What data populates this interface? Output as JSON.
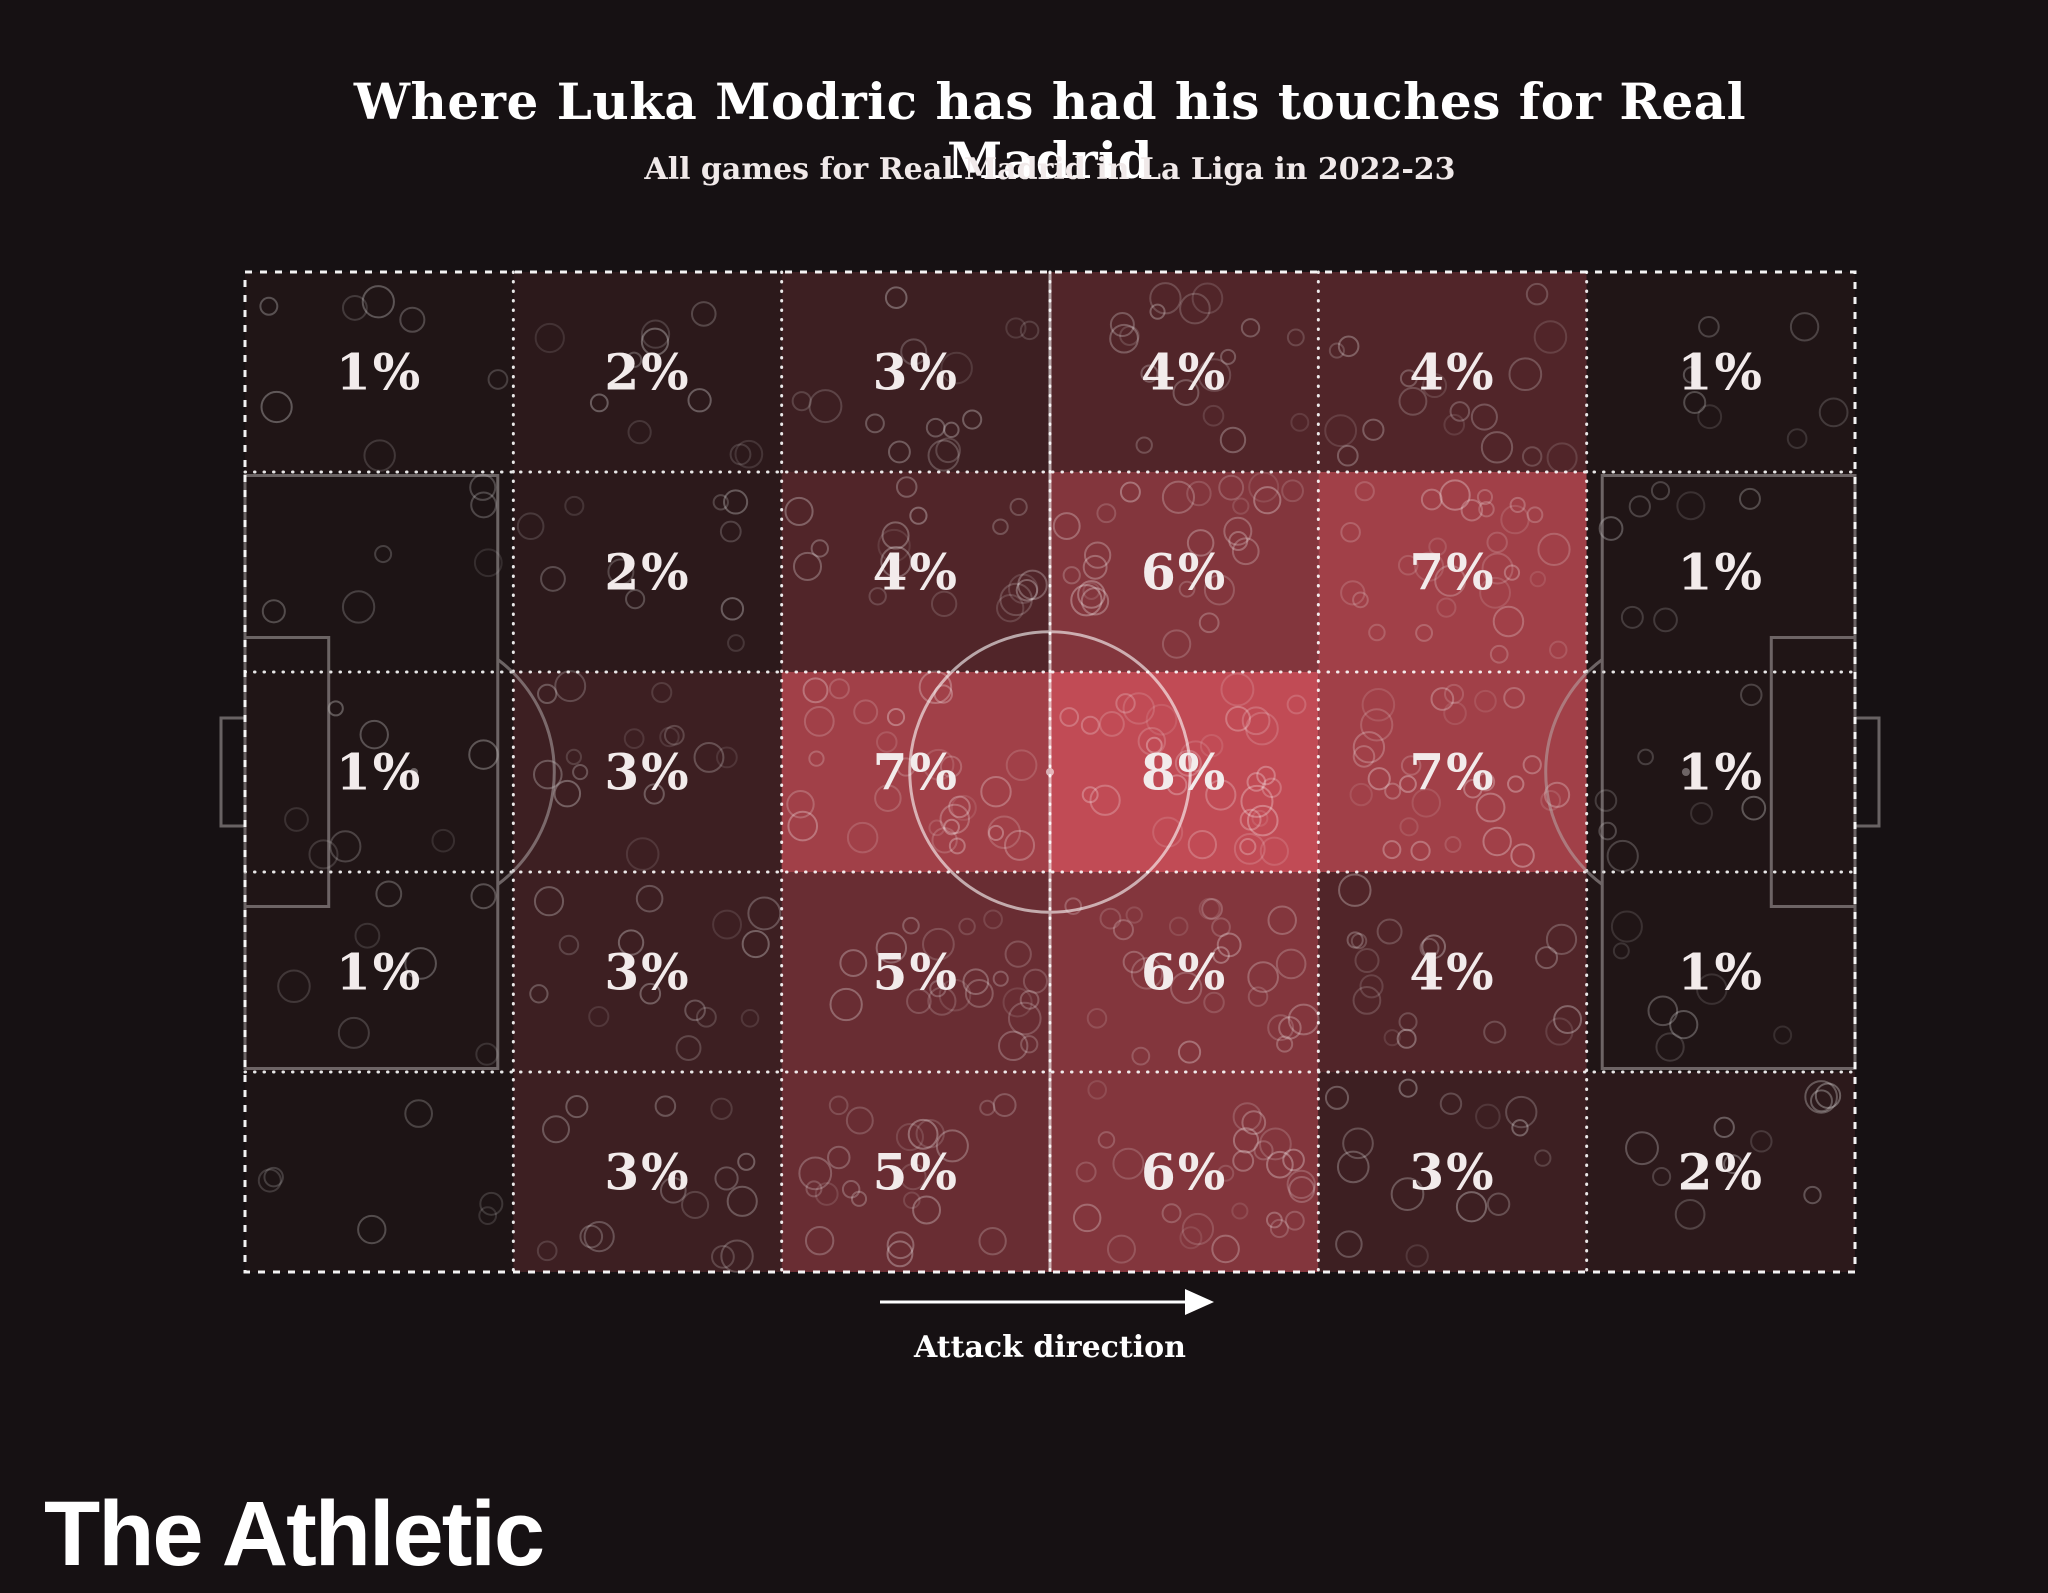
{
  "title": "Where Luka Modric has had his touches for Real Madrid",
  "subtitle": "All games for Real Madrid in La Liga in 2022-23",
  "attack_label": "Attack direction",
  "brand": "The Athletic",
  "colors": {
    "background": "#161113",
    "zone_low": "#1a1314",
    "zone_high": "#c14b55",
    "pitch_line": "#ffffff",
    "marking_line": "#b9b3b3",
    "label_text": "#f2ebeb"
  },
  "chart_data": {
    "type": "heatmap",
    "title": "Where Luka Modric has had his touches for Real Madrid",
    "subtitle": "All games for Real Madrid in La Liga in 2022-23",
    "unit": "%",
    "rows": 5,
    "cols": 6,
    "values": [
      [
        1,
        2,
        3,
        4,
        4,
        1
      ],
      [
        null,
        2,
        4,
        6,
        7,
        1
      ],
      [
        1,
        3,
        7,
        8,
        7,
        1
      ],
      [
        1,
        3,
        5,
        6,
        4,
        1
      ],
      [
        null,
        3,
        5,
        6,
        3,
        2
      ]
    ],
    "value_max": 8,
    "attack_direction": "left-to-right",
    "legend": "Attack direction"
  }
}
